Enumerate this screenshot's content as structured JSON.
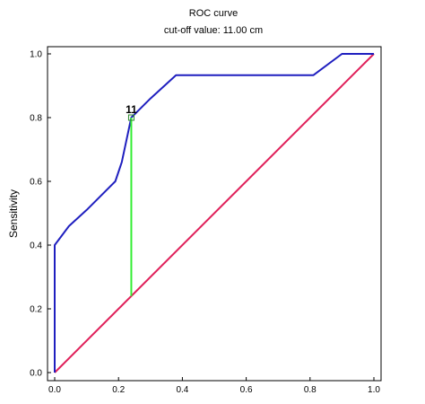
{
  "chart_data": {
    "type": "line",
    "title": "ROC curve",
    "subtitle": "cut-off value:  11.00 cm",
    "xlabel": "",
    "ylabel": "Sensitivity",
    "xlim": [
      0,
      1
    ],
    "ylim": [
      0,
      1
    ],
    "x_ticks": [
      "0.0",
      "0.2",
      "0.4",
      "0.6",
      "0.8",
      "1.0"
    ],
    "y_ticks": [
      "0.0",
      "0.2",
      "0.4",
      "0.6",
      "0.8",
      "1.0"
    ],
    "grid": false,
    "series": [
      {
        "color": "#1f1fbf",
        "x": [
          0,
          0,
          0.045,
          0.1,
          0.19,
          0.21,
          0.24,
          0.3,
          0.38,
          0.81,
          0.9,
          1.0
        ],
        "y": [
          0,
          0.4,
          0.46,
          0.51,
          0.6,
          0.66,
          0.8,
          0.86,
          0.933,
          0.933,
          1.0,
          1.0
        ]
      },
      {
        "color": "#e0205a",
        "x": [
          0,
          1
        ],
        "y": [
          0,
          1
        ]
      }
    ],
    "cutoff": {
      "label": "11",
      "x": 0.24,
      "y_curve": 0.8,
      "y_diag": 0.24,
      "color": "#33ee33"
    }
  }
}
